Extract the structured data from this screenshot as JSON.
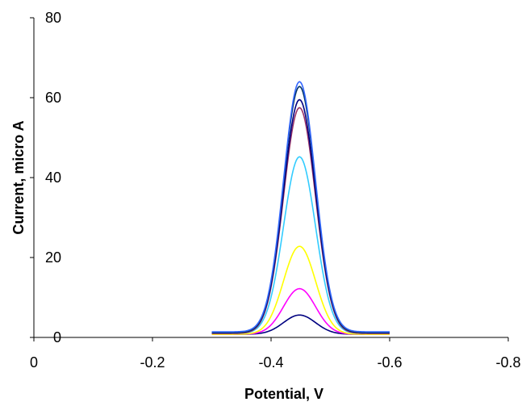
{
  "chart_data": {
    "type": "line",
    "title": "",
    "xlabel": "Potential, V",
    "ylabel": "Current, micro A",
    "xlim": [
      0,
      -0.8
    ],
    "ylim": [
      0,
      80
    ],
    "x_ticks": [
      0,
      -0.2,
      -0.4,
      -0.6,
      -0.8
    ],
    "x_tick_labels": [
      "0",
      "-0.2",
      "-0.4",
      "-0.6",
      "-0.8"
    ],
    "y_ticks": [
      0,
      20,
      40,
      60,
      80
    ],
    "y_tick_labels": [
      "0",
      "20",
      "40",
      "60",
      "80"
    ],
    "grid": false,
    "legend": "none",
    "x_range": [
      -0.3,
      -0.6
    ],
    "peak_potential": -0.448,
    "series": [
      {
        "color": "#000080",
        "peak": 5.6,
        "baseline": 0.8
      },
      {
        "color": "#ff00ff",
        "peak": 12.2,
        "baseline": 0.8
      },
      {
        "color": "#ffff00",
        "peak": 22.8,
        "baseline": 0.8
      },
      {
        "color": "#33ccff",
        "peak": 45.2,
        "baseline": 1.0
      },
      {
        "color": "#993366",
        "peak": 57.5,
        "baseline": 1.0
      },
      {
        "color": "#000080",
        "peak": 59.5,
        "baseline": 1.2
      },
      {
        "color": "#003366",
        "peak": 62.8,
        "baseline": 1.2
      },
      {
        "color": "#3366ff",
        "peak": 64.0,
        "baseline": 1.4
      }
    ]
  }
}
